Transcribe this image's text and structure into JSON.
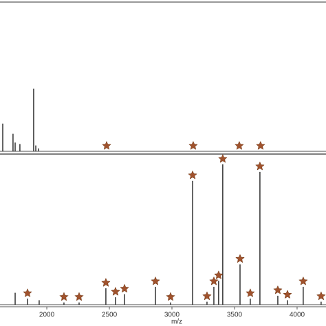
{
  "chart_data": [
    {
      "type": "spectrum",
      "xlim": [
        1626,
        4231
      ],
      "ylim": [
        0,
        100
      ],
      "color": "#111111",
      "marker_color": "#a0522d",
      "x": [
        1648,
        1730,
        1747,
        1785,
        1895,
        1912,
        1934
      ],
      "values": [
        19,
        12,
        6,
        5,
        43,
        4,
        2
      ],
      "markers": [
        2478,
        3170,
        3538,
        3708
      ]
    },
    {
      "type": "spectrum",
      "xlim": [
        1626,
        4231
      ],
      "ylim": [
        0,
        100
      ],
      "color": "#111111",
      "marker_color": "#a0522d",
      "x": [
        1747,
        1846,
        1939,
        2137,
        2258,
        2472,
        2549,
        2621,
        2868,
        2989,
        3165,
        3280,
        3335,
        3373,
        3406,
        3544,
        3626,
        3703,
        3846,
        3923,
        4049,
        4192
      ],
      "values": [
        8,
        4,
        3,
        1.5,
        1.5,
        11,
        5,
        7,
        12,
        1.5,
        83,
        2,
        12,
        16,
        94,
        27,
        4,
        89,
        6,
        3,
        12,
        2
      ],
      "markers": [
        1846,
        2137,
        2258,
        2472,
        2549,
        2621,
        2868,
        2989,
        3165,
        3280,
        3335,
        3373,
        3406,
        3544,
        3626,
        3703,
        3846,
        3923,
        4049,
        4192
      ],
      "xticks": [
        2000,
        2500,
        3000,
        3500,
        4000
      ],
      "xlabel": "m/z"
    }
  ]
}
